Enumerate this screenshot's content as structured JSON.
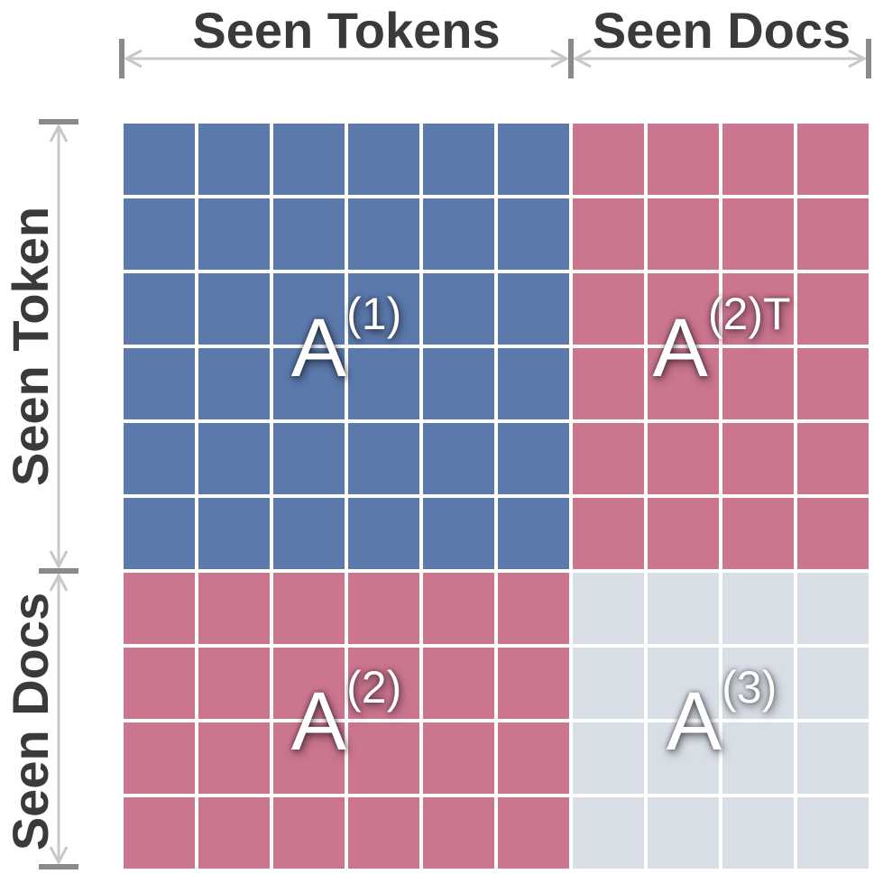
{
  "headers": {
    "top_left": "Seen Tokens",
    "top_right": "Seen Docs",
    "side_top": "Seen Token",
    "side_bottom": "Seen Docs"
  },
  "grid": {
    "token_count": 6,
    "doc_count": 4
  },
  "blocks": {
    "top_left": {
      "letter": "A",
      "superscript": "(1)",
      "color": "#5c79ac"
    },
    "top_right": {
      "letter": "A",
      "superscript": "(2)T",
      "color": "#cb758f"
    },
    "bottom_left": {
      "letter": "A",
      "superscript": "(2)",
      "color": "#cb758f"
    },
    "bottom_right": {
      "letter": "A",
      "superscript": "(3)",
      "color": "#d8dee6"
    }
  },
  "colors": {
    "bracket": "#c8c8c8",
    "bracket_end": "#8a8a8a",
    "cell_border": "#ffffff"
  }
}
